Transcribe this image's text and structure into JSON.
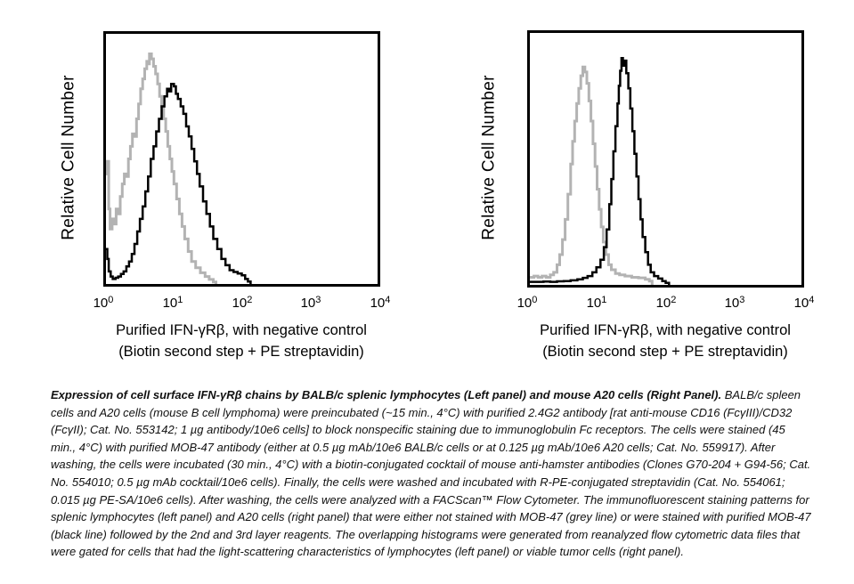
{
  "panels": [
    {
      "id": "left",
      "y_label": "Relative Cell Number",
      "x_label_line1": "Purified IFN-γRβ, with negative control",
      "x_label_line2": "(Biotin second step + PE streptavidin)",
      "ticks": [
        {
          "b": "10",
          "e": "0"
        },
        {
          "b": "10",
          "e": "1"
        },
        {
          "b": "10",
          "e": "2"
        },
        {
          "b": "10",
          "e": "3"
        },
        {
          "b": "10",
          "e": "4"
        }
      ]
    },
    {
      "id": "right",
      "y_label": "Relative Cell Number",
      "x_label_line1": "Purified IFN-γRβ, with negative control",
      "x_label_line2": "(Biotin second step + PE streptavidin)",
      "ticks": [
        {
          "b": "10",
          "e": "0"
        },
        {
          "b": "10",
          "e": "1"
        },
        {
          "b": "10",
          "e": "2"
        },
        {
          "b": "10",
          "e": "3"
        },
        {
          "b": "10",
          "e": "4"
        }
      ]
    }
  ],
  "caption": {
    "lead": "Expression of cell surface IFN-γRβ chains by BALB/c splenic lymphocytes (Left panel) and mouse A20 cells (Right Panel).",
    "body": "BALB/c spleen cells and A20 cells (mouse B cell lymphoma) were preincubated (~15 min., 4°C) with purified 2.4G2 antibody [rat anti-mouse CD16 (FcγIII)/CD32 (FcγII); Cat. No. 553142; 1 µg antibody/10e6 cells] to block nonspecific staining due to immunoglobulin Fc receptors. The cells were stained (45 min., 4°C) with purified MOB-47 antibody (either at 0.5 µg mAb/10e6 BALB/c cells or at 0.125 µg mAb/10e6 A20 cells; Cat. No. 559917). After washing, the cells were incubated (30 min., 4°C) with a biotin-conjugated cocktail of mouse anti-hamster antibodies (Clones G70-204 + G94-56; Cat. No. 554010; 0.5 µg mAb cocktail/10e6 cells). Finally, the cells were washed and incubated with R-PE-conjugated streptavidin (Cat. No. 554061; 0.015 µg PE-SA/10e6 cells). After washing, the cells were analyzed with a FACScan™ Flow Cytometer. The immunofluorescent staining patterns for splenic lymphocytes (left panel) and A20 cells (right panel) that were either not stained with MOB-47 (grey line) or were stained with purified MOB-47 (black line) followed by the 2nd and 3rd layer reagents. The overlapping histograms were generated from reanalyzed flow cytometric data files that were gated for cells that had the light-scattering characteristics of lymphocytes (left panel) or viable tumor cells (right panel)."
  },
  "chart_data": [
    {
      "type": "line",
      "panel": "left",
      "title": "BALB/c splenic lymphocytes",
      "xlabel": "Purified IFN-γRβ, with negative control (Biotin second step + PE streptavidin)",
      "ylabel": "Relative Cell Number",
      "x_scale": "log10",
      "x_range_log": [
        0,
        4
      ],
      "x_tick_values": [
        1,
        10,
        100,
        1000,
        10000
      ],
      "grid": false,
      "legend": "none",
      "series": [
        {
          "name": "not stained with MOB-47 (grey line)",
          "color": "#b3b3b3",
          "peak_x_value": 4.8,
          "points_logx_h": [
            [
              0.0,
              0.44
            ],
            [
              0.02,
              0.49
            ],
            [
              0.04,
              0.3
            ],
            [
              0.06,
              0.22
            ],
            [
              0.09,
              0.26
            ],
            [
              0.12,
              0.24
            ],
            [
              0.15,
              0.3
            ],
            [
              0.18,
              0.28
            ],
            [
              0.21,
              0.35
            ],
            [
              0.24,
              0.4
            ],
            [
              0.27,
              0.44
            ],
            [
              0.3,
              0.43
            ],
            [
              0.33,
              0.5
            ],
            [
              0.36,
              0.55
            ],
            [
              0.39,
              0.6
            ],
            [
              0.42,
              0.59
            ],
            [
              0.45,
              0.66
            ],
            [
              0.48,
              0.72
            ],
            [
              0.51,
              0.78
            ],
            [
              0.54,
              0.82
            ],
            [
              0.57,
              0.86
            ],
            [
              0.6,
              0.89
            ],
            [
              0.62,
              0.88
            ],
            [
              0.64,
              0.92
            ],
            [
              0.67,
              0.9
            ],
            [
              0.7,
              0.87
            ],
            [
              0.73,
              0.84
            ],
            [
              0.76,
              0.8
            ],
            [
              0.79,
              0.75
            ],
            [
              0.82,
              0.71
            ],
            [
              0.85,
              0.66
            ],
            [
              0.88,
              0.61
            ],
            [
              0.91,
              0.55
            ],
            [
              0.94,
              0.5
            ],
            [
              0.97,
              0.45
            ],
            [
              1.0,
              0.4
            ],
            [
              1.04,
              0.34
            ],
            [
              1.08,
              0.28
            ],
            [
              1.12,
              0.23
            ],
            [
              1.16,
              0.18
            ],
            [
              1.21,
              0.13
            ],
            [
              1.26,
              0.09
            ],
            [
              1.32,
              0.065
            ],
            [
              1.39,
              0.045
            ],
            [
              1.46,
              0.03
            ],
            [
              1.52,
              0.018
            ],
            [
              1.58,
              0.008
            ],
            [
              1.62,
              0.0
            ]
          ]
        },
        {
          "name": "purified MOB-47 (black line)",
          "color": "#000000",
          "peak_x_value": 9.5,
          "points_logx_h": [
            [
              0.0,
              0.14
            ],
            [
              0.02,
              0.1
            ],
            [
              0.04,
              0.05
            ],
            [
              0.07,
              0.03
            ],
            [
              0.1,
              0.02
            ],
            [
              0.14,
              0.025
            ],
            [
              0.18,
              0.03
            ],
            [
              0.22,
              0.04
            ],
            [
              0.26,
              0.05
            ],
            [
              0.3,
              0.07
            ],
            [
              0.34,
              0.09
            ],
            [
              0.38,
              0.12
            ],
            [
              0.42,
              0.16
            ],
            [
              0.46,
              0.21
            ],
            [
              0.5,
              0.26
            ],
            [
              0.54,
              0.31
            ],
            [
              0.58,
              0.37
            ],
            [
              0.62,
              0.43
            ],
            [
              0.66,
              0.5
            ],
            [
              0.7,
              0.55
            ],
            [
              0.74,
              0.61
            ],
            [
              0.78,
              0.66
            ],
            [
              0.82,
              0.71
            ],
            [
              0.86,
              0.75
            ],
            [
              0.9,
              0.78
            ],
            [
              0.93,
              0.77
            ],
            [
              0.96,
              0.8
            ],
            [
              1.0,
              0.79
            ],
            [
              1.03,
              0.76
            ],
            [
              1.06,
              0.74
            ],
            [
              1.1,
              0.71
            ],
            [
              1.14,
              0.68
            ],
            [
              1.18,
              0.63
            ],
            [
              1.22,
              0.59
            ],
            [
              1.26,
              0.54
            ],
            [
              1.3,
              0.49
            ],
            [
              1.34,
              0.44
            ],
            [
              1.38,
              0.39
            ],
            [
              1.43,
              0.33
            ],
            [
              1.48,
              0.28
            ],
            [
              1.53,
              0.23
            ],
            [
              1.58,
              0.18
            ],
            [
              1.64,
              0.14
            ],
            [
              1.7,
              0.1
            ],
            [
              1.76,
              0.075
            ],
            [
              1.82,
              0.055
            ],
            [
              1.88,
              0.048
            ],
            [
              1.94,
              0.042
            ],
            [
              2.0,
              0.035
            ],
            [
              2.05,
              0.02
            ],
            [
              2.09,
              0.01
            ],
            [
              2.13,
              0.0
            ]
          ]
        }
      ]
    },
    {
      "type": "line",
      "panel": "right",
      "title": "mouse A20 cells",
      "xlabel": "Purified IFN-γRβ, with negative control (Biotin second step + PE streptavidin)",
      "ylabel": "Relative Cell Number",
      "x_scale": "log10",
      "x_range_log": [
        0,
        4
      ],
      "x_tick_values": [
        1,
        10,
        100,
        1000,
        10000
      ],
      "grid": false,
      "legend": "none",
      "series": [
        {
          "name": "not stained with MOB-47 (grey line)",
          "color": "#b3b3b3",
          "peak_x_value": 6,
          "points_logx_h": [
            [
              0.0,
              0.03
            ],
            [
              0.06,
              0.035
            ],
            [
              0.12,
              0.03
            ],
            [
              0.18,
              0.035
            ],
            [
              0.24,
              0.03
            ],
            [
              0.3,
              0.04
            ],
            [
              0.35,
              0.05
            ],
            [
              0.4,
              0.08
            ],
            [
              0.44,
              0.12
            ],
            [
              0.48,
              0.18
            ],
            [
              0.52,
              0.26
            ],
            [
              0.56,
              0.36
            ],
            [
              0.6,
              0.48
            ],
            [
              0.63,
              0.57
            ],
            [
              0.66,
              0.65
            ],
            [
              0.69,
              0.72
            ],
            [
              0.72,
              0.78
            ],
            [
              0.75,
              0.83
            ],
            [
              0.78,
              0.865
            ],
            [
              0.81,
              0.845
            ],
            [
              0.84,
              0.8
            ],
            [
              0.87,
              0.73
            ],
            [
              0.9,
              0.65
            ],
            [
              0.93,
              0.56
            ],
            [
              0.96,
              0.47
            ],
            [
              0.99,
              0.38
            ],
            [
              1.02,
              0.3
            ],
            [
              1.05,
              0.23
            ],
            [
              1.08,
              0.17
            ],
            [
              1.12,
              0.12
            ],
            [
              1.16,
              0.08
            ],
            [
              1.2,
              0.06
            ],
            [
              1.26,
              0.045
            ],
            [
              1.32,
              0.04
            ],
            [
              1.4,
              0.035
            ],
            [
              1.5,
              0.03
            ],
            [
              1.6,
              0.028
            ],
            [
              1.7,
              0.022
            ],
            [
              1.76,
              0.015
            ],
            [
              1.8,
              0.0
            ]
          ]
        },
        {
          "name": "purified MOB-47 (black line)",
          "color": "#000000",
          "peak_x_value": 23,
          "points_logx_h": [
            [
              0.0,
              0.012
            ],
            [
              0.1,
              0.012
            ],
            [
              0.2,
              0.013
            ],
            [
              0.3,
              0.012
            ],
            [
              0.4,
              0.014
            ],
            [
              0.5,
              0.015
            ],
            [
              0.6,
              0.018
            ],
            [
              0.7,
              0.022
            ],
            [
              0.78,
              0.028
            ],
            [
              0.85,
              0.035
            ],
            [
              0.92,
              0.05
            ],
            [
              0.98,
              0.07
            ],
            [
              1.04,
              0.1
            ],
            [
              1.09,
              0.15
            ],
            [
              1.13,
              0.22
            ],
            [
              1.17,
              0.32
            ],
            [
              1.2,
              0.42
            ],
            [
              1.23,
              0.53
            ],
            [
              1.26,
              0.63
            ],
            [
              1.29,
              0.72
            ],
            [
              1.31,
              0.79
            ],
            [
              1.33,
              0.85
            ],
            [
              1.35,
              0.9
            ],
            [
              1.37,
              0.87
            ],
            [
              1.39,
              0.89
            ],
            [
              1.42,
              0.84
            ],
            [
              1.45,
              0.78
            ],
            [
              1.48,
              0.7
            ],
            [
              1.51,
              0.61
            ],
            [
              1.54,
              0.52
            ],
            [
              1.57,
              0.43
            ],
            [
              1.6,
              0.34
            ],
            [
              1.63,
              0.26
            ],
            [
              1.66,
              0.19
            ],
            [
              1.7,
              0.13
            ],
            [
              1.74,
              0.08
            ],
            [
              1.78,
              0.05
            ],
            [
              1.83,
              0.035
            ],
            [
              1.89,
              0.025
            ],
            [
              1.95,
              0.015
            ],
            [
              2.0,
              0.008
            ],
            [
              2.05,
              0.0
            ]
          ]
        }
      ]
    }
  ]
}
